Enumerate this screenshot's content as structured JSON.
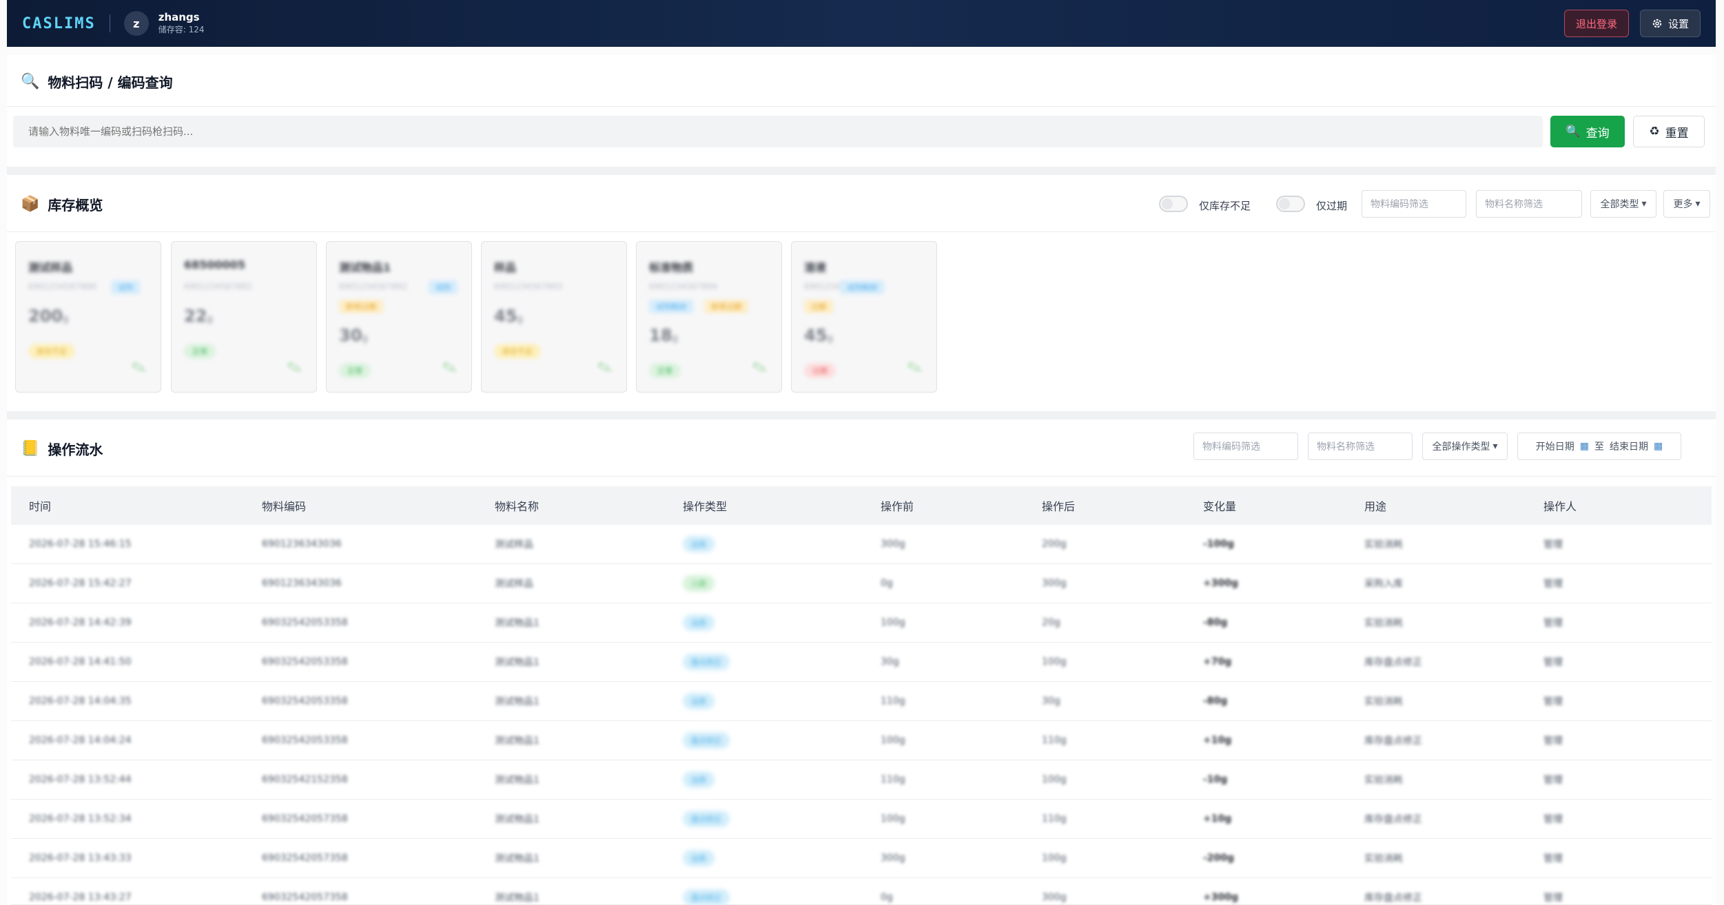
{
  "header": {
    "app_name": "CASLIMS",
    "avatar_letter": "z",
    "user_name": "zhangs",
    "user_sub": "储存容: 124",
    "logout_label": "退出登录",
    "settings_label": "设置"
  },
  "search": {
    "title": "物料扫码 / 编码查询",
    "placeholder": "请输入物料唯一编码或扫码枪扫码...",
    "query_label": "查询",
    "reset_label": "重置"
  },
  "inventory": {
    "title": "库存概览",
    "toggle_low_label": "仅库存不足",
    "toggle_expired_label": "仅过期",
    "code_filter_placeholder": "物料编码筛选",
    "name_filter_placeholder": "物料名称筛选",
    "type_select": "全部类型",
    "more_select": "更多",
    "cards": [
      {
        "name": "测试样品",
        "code": "6901234567890",
        "tags": [
          {
            "text": "试剂",
            "color": "blue"
          }
        ],
        "qty": "200",
        "unit": "g",
        "status": "库存不足",
        "status_color": "yellow"
      },
      {
        "name": "68500005",
        "code": "6901234567891",
        "tags": [],
        "qty": "22",
        "unit": "g",
        "status": "正常",
        "status_color": "green"
      },
      {
        "name": "测试物品1",
        "code": "6901234567892",
        "tags": [
          {
            "text": "试剂",
            "color": "blue"
          },
          {
            "text": "即将过期",
            "color": "orange"
          }
        ],
        "qty": "30",
        "unit": "g",
        "status": "正常",
        "status_color": "green"
      },
      {
        "name": "样品",
        "code": "6901234567893",
        "tags": [],
        "qty": "45",
        "unit": "g",
        "status": "库存不足",
        "status_color": "yellow"
      },
      {
        "name": "标准物质",
        "code": "6901234567894",
        "tags": [
          {
            "text": "试剂耗材",
            "color": "blue"
          },
          {
            "text": "即将过期",
            "color": "orange"
          }
        ],
        "qty": "18",
        "unit": "g",
        "status": "正常",
        "status_color": "green"
      },
      {
        "name": "溶液",
        "code": "69012345",
        "tags": [
          {
            "text": "试剂耗材",
            "color": "blue"
          },
          {
            "text": "过期",
            "color": "orange"
          }
        ],
        "qty": "45",
        "unit": "g",
        "status": "过期",
        "status_color": "red"
      }
    ]
  },
  "operations": {
    "title": "操作流水",
    "code_filter_placeholder": "物料编码筛选",
    "name_filter_placeholder": "物料名称筛选",
    "op_type_select": "全部操作类型",
    "start_date": "开始日期",
    "date_sep": "至",
    "end_date": "结束日期",
    "columns": [
      "时间",
      "物料编码",
      "物料名称",
      "操作类型",
      "操作前",
      "操作后",
      "变化量",
      "用途",
      "操作人"
    ],
    "rows": [
      {
        "time": "2026-07-28 15:46:15",
        "code": "6901236343036",
        "name": "测试样品",
        "type": "出库",
        "type_color": "blue",
        "before": "300g",
        "after": "200g",
        "change": "-100g",
        "purpose": "实验消耗",
        "operator": "管理"
      },
      {
        "time": "2026-07-28 15:42:27",
        "code": "6901236343036",
        "name": "测试样品",
        "type": "入库",
        "type_color": "green",
        "before": "0g",
        "after": "300g",
        "change": "+300g",
        "purpose": "采购入库",
        "operator": "管理"
      },
      {
        "time": "2026-07-28 14:42:39",
        "code": "69032542053358",
        "name": "测试物品1",
        "type": "出库",
        "type_color": "blue",
        "before": "100g",
        "after": "20g",
        "change": "-80g",
        "purpose": "实验消耗",
        "operator": "管理"
      },
      {
        "time": "2026-07-28 14:41:50",
        "code": "69032542053358",
        "name": "测试物品1",
        "type": "盘点修正",
        "type_color": "blue",
        "before": "30g",
        "after": "100g",
        "change": "+70g",
        "purpose": "库存盘点修正",
        "operator": "管理"
      },
      {
        "time": "2026-07-28 14:04:35",
        "code": "69032542053358",
        "name": "测试物品1",
        "type": "出库",
        "type_color": "blue",
        "before": "110g",
        "after": "30g",
        "change": "-80g",
        "purpose": "实验消耗",
        "operator": "管理"
      },
      {
        "time": "2026-07-28 14:04:24",
        "code": "69032542053358",
        "name": "测试物品1",
        "type": "盘点修正",
        "type_color": "blue",
        "before": "100g",
        "after": "110g",
        "change": "+10g",
        "purpose": "库存盘点修正",
        "operator": "管理"
      },
      {
        "time": "2026-07-28 13:52:44",
        "code": "69032542152358",
        "name": "测试物品1",
        "type": "出库",
        "type_color": "blue",
        "before": "110g",
        "after": "100g",
        "change": "-10g",
        "purpose": "实验消耗",
        "operator": "管理"
      },
      {
        "time": "2026-07-28 13:52:34",
        "code": "69032542057358",
        "name": "测试物品1",
        "type": "盘点修正",
        "type_color": "blue",
        "before": "100g",
        "after": "110g",
        "change": "+10g",
        "purpose": "库存盘点修正",
        "operator": "管理"
      },
      {
        "time": "2026-07-28 13:43:33",
        "code": "69032542057358",
        "name": "测试物品1",
        "type": "出库",
        "type_color": "blue",
        "before": "300g",
        "after": "100g",
        "change": "-200g",
        "purpose": "实验消耗",
        "operator": "管理"
      },
      {
        "time": "2026-07-28 13:43:27",
        "code": "69032542057358",
        "name": "测试物品1",
        "type": "盘点修正",
        "type_color": "blue",
        "before": "0g",
        "after": "300g",
        "change": "+300g",
        "purpose": "库存盘点修正",
        "operator": "管理"
      }
    ]
  },
  "colors": {
    "header_bg": "#0f1f3f",
    "logo": "#60d3f5",
    "primary_green": "#16a34a",
    "logout_red": "#ff6b7d"
  }
}
